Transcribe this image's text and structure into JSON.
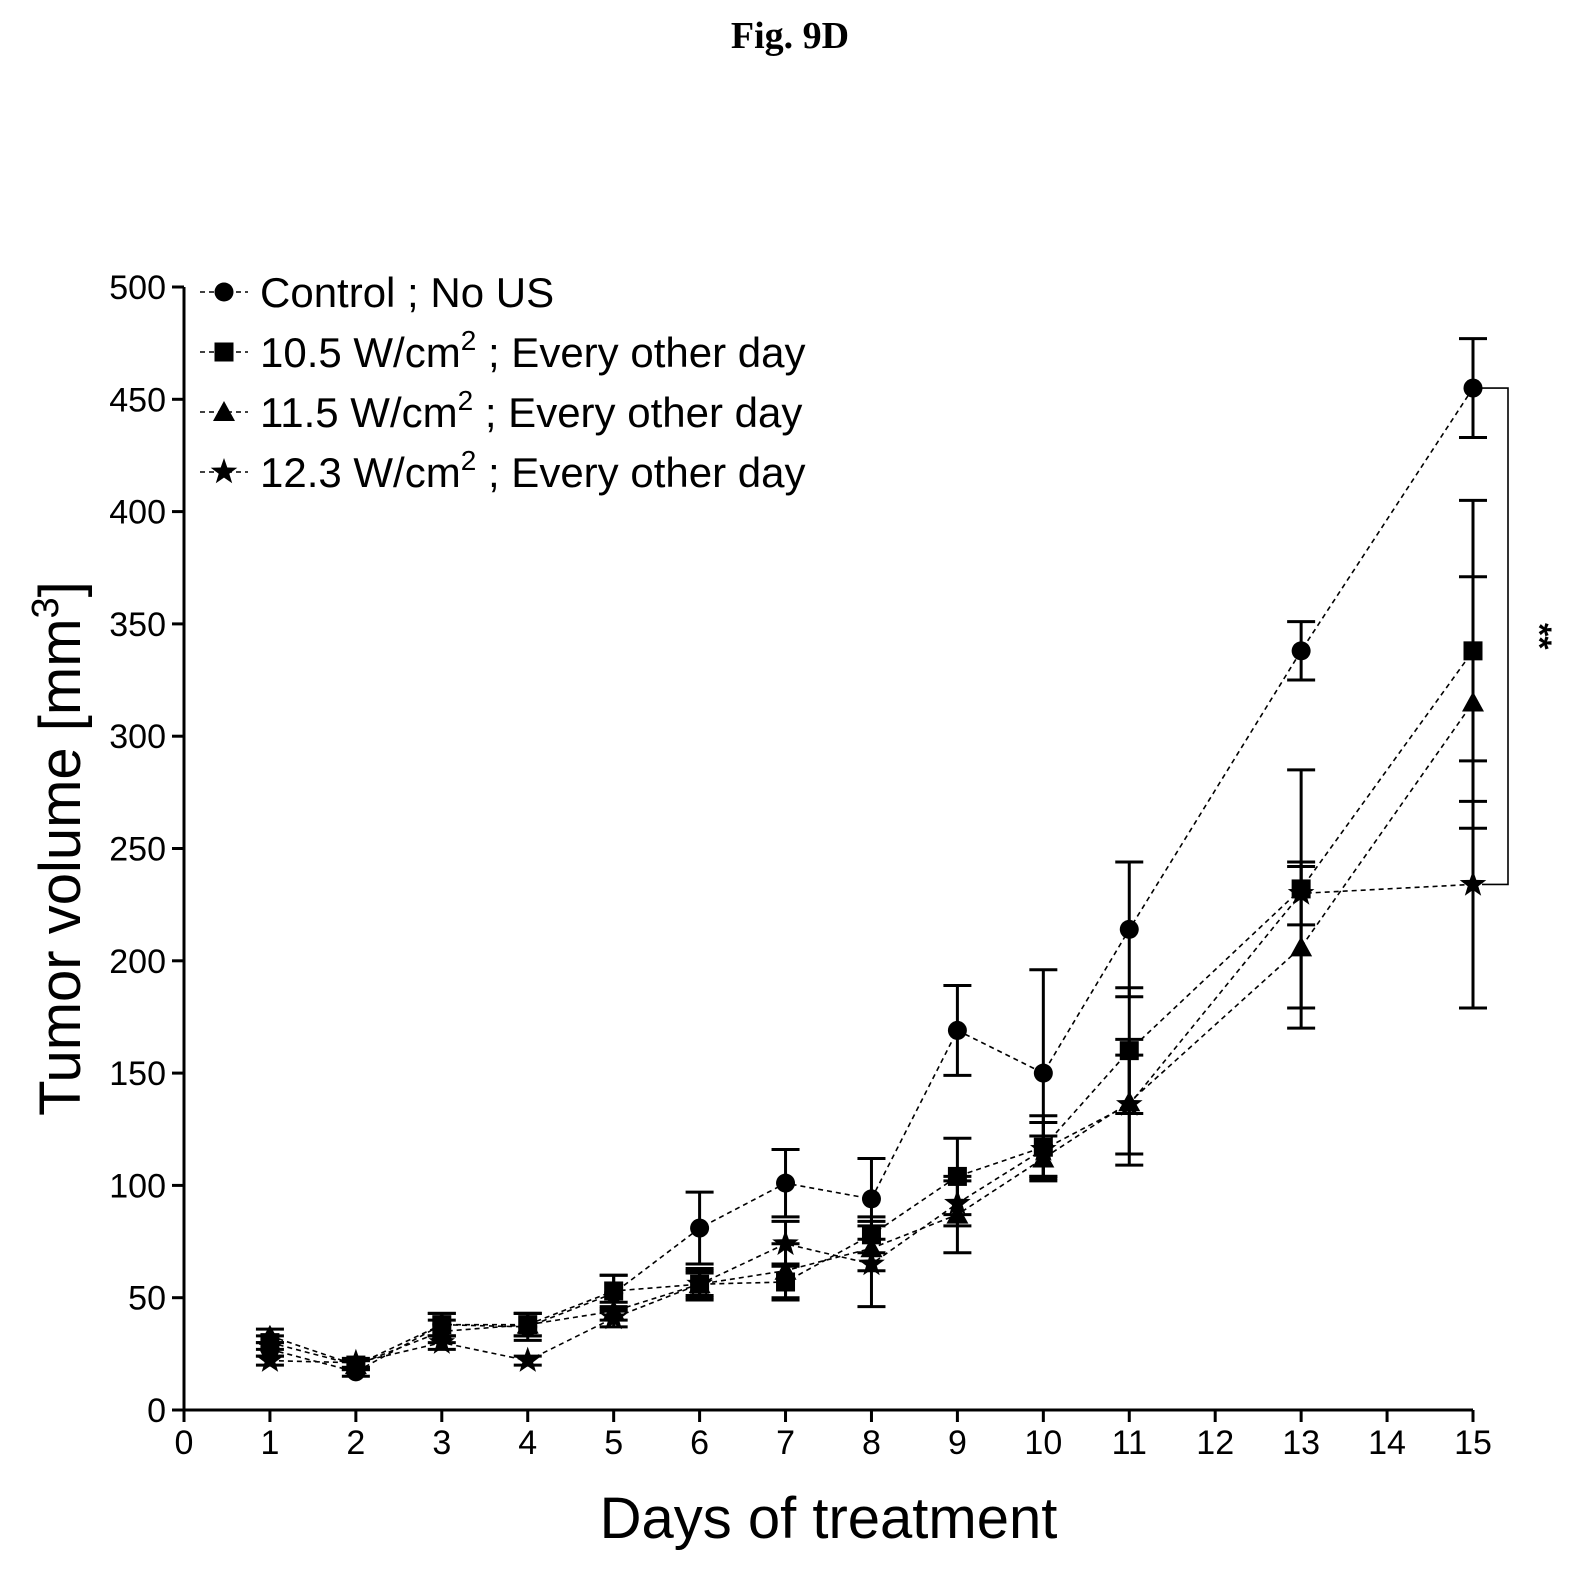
{
  "figure": {
    "title": "Fig. 9D"
  },
  "chart_data": {
    "type": "line",
    "xlabel": "Days of treatment",
    "ylabel": "Tumor volume [mm",
    "ylabel_sup": "3",
    "ylabel_close": "]",
    "xlim": [
      0,
      15
    ],
    "ylim": [
      0,
      500
    ],
    "xticks": [
      "0",
      "1",
      "2",
      "3",
      "4",
      "5",
      "6",
      "7",
      "8",
      "9",
      "10",
      "11",
      "12",
      "13",
      "14",
      "15"
    ],
    "yticks": [
      "0",
      "50",
      "100",
      "150",
      "200",
      "250",
      "300",
      "350",
      "400",
      "450",
      "500"
    ],
    "grid": false,
    "legend_position": "top-left",
    "significance": {
      "label": "**",
      "between_series": [
        "Control ; No US",
        "12.3 W/cm2 ; Every other day"
      ],
      "at_x": 15
    },
    "series": [
      {
        "name": "Control ; No US",
        "legend_main": "Control ; No US",
        "legend_sup": "",
        "legend_suffix": "",
        "marker": "circle",
        "x": [
          1,
          2,
          3,
          4,
          5,
          6,
          7,
          8,
          9,
          10,
          11,
          13,
          15
        ],
        "y": [
          27,
          17,
          38,
          37,
          52,
          81,
          101,
          94,
          169,
          150,
          214,
          338,
          455
        ],
        "err": [
          3,
          2,
          5,
          6,
          8,
          16,
          15,
          18,
          20,
          46,
          30,
          13,
          22
        ]
      },
      {
        "name": "10.5 W/cm2 ; Every other day",
        "legend_main": "10.5 W/cm",
        "legend_sup": "2",
        "legend_suffix": " ; Every other day",
        "marker": "square",
        "x": [
          1,
          2,
          3,
          4,
          5,
          6,
          7,
          8,
          9,
          10,
          11,
          13,
          15
        ],
        "y": [
          30,
          20,
          38,
          38,
          53,
          56,
          57,
          78,
          104,
          117,
          160,
          232,
          338
        ],
        "err": [
          3,
          2,
          5,
          5,
          7,
          7,
          8,
          8,
          17,
          14,
          28,
          53,
          67
        ]
      },
      {
        "name": "11.5 W/cm2 ; Every other day",
        "legend_main": "11.5 W/cm",
        "legend_sup": "2",
        "legend_suffix": " ; Every other day",
        "marker": "triangle",
        "x": [
          1,
          2,
          3,
          4,
          5,
          6,
          7,
          8,
          9,
          10,
          11,
          13,
          15
        ],
        "y": [
          33,
          20,
          35,
          38,
          44,
          56,
          62,
          72,
          87,
          112,
          137,
          206,
          315
        ],
        "err": [
          3,
          2,
          5,
          5,
          4,
          6,
          12,
          10,
          17,
          10,
          28,
          36,
          56
        ]
      },
      {
        "name": "12.3 W/cm2 ; Every other day",
        "legend_main": "12.3 W/cm",
        "legend_sup": "2",
        "legend_suffix": " ; Every other day",
        "marker": "star",
        "x": [
          1,
          2,
          3,
          4,
          5,
          6,
          7,
          8,
          9,
          10,
          11,
          13,
          15
        ],
        "y": [
          22,
          21,
          30,
          22,
          41,
          56,
          74,
          65,
          92,
          116,
          136,
          230,
          234
        ],
        "err": [
          2,
          2,
          3,
          2,
          4,
          5,
          10,
          19,
          10,
          12,
          22,
          14,
          55
        ]
      }
    ]
  }
}
